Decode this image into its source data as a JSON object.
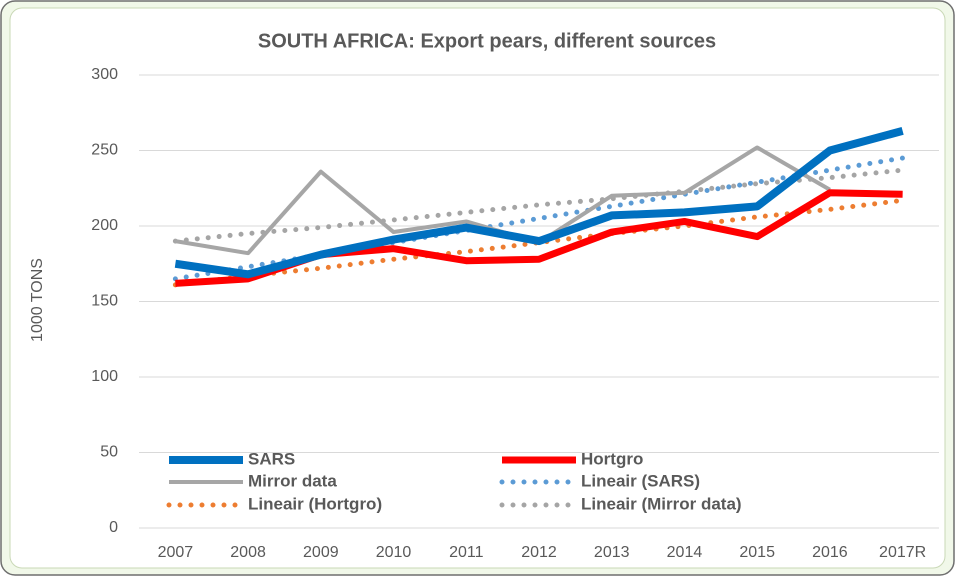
{
  "chart_data": {
    "type": "line",
    "title": "SOUTH AFRICA: Export pears, different sources",
    "y_label": "1000 TONS",
    "categories": [
      "2007",
      "2008",
      "2009",
      "2010",
      "2011",
      "2012",
      "2013",
      "2014",
      "2015",
      "2016",
      "2017R"
    ],
    "series": [
      {
        "name": "SARS",
        "color": "#0070c0",
        "style": "solid",
        "values": [
          175,
          168,
          181,
          191,
          199,
          190,
          207,
          209,
          213,
          250,
          263
        ]
      },
      {
        "name": "Hortgro",
        "color": "#ff0000",
        "style": "solid",
        "values": [
          162,
          165,
          181,
          185,
          177,
          178,
          196,
          203,
          193,
          222,
          221
        ]
      },
      {
        "name": "Mirror data",
        "color": "#a6a6a6",
        "style": "solid",
        "values": [
          190,
          182,
          236,
          196,
          203,
          189,
          220,
          222,
          252,
          224,
          null
        ]
      },
      {
        "name": "Lineair (SARS)",
        "color": "#5b9bd5",
        "style": "dotted",
        "values": [
          165,
          173,
          181,
          189,
          197,
          205,
          213,
          221,
          229,
          237,
          245
        ]
      },
      {
        "name": "Lineair (Hortgro)",
        "color": "#ed7d31",
        "style": "dotted",
        "values": [
          161,
          167,
          172,
          178,
          183,
          189,
          195,
          200,
          206,
          211,
          217
        ]
      },
      {
        "name": "Lineair (Mirror data)",
        "color": "#a5a5a5",
        "style": "dotted",
        "values": [
          190,
          195,
          199,
          204,
          209,
          214,
          218,
          223,
          228,
          232,
          237
        ]
      }
    ],
    "ylim": [
      0,
      300
    ],
    "yticks": [
      0,
      50,
      100,
      150,
      200,
      250,
      300
    ],
    "grid": true,
    "legend": "bottom-left"
  }
}
